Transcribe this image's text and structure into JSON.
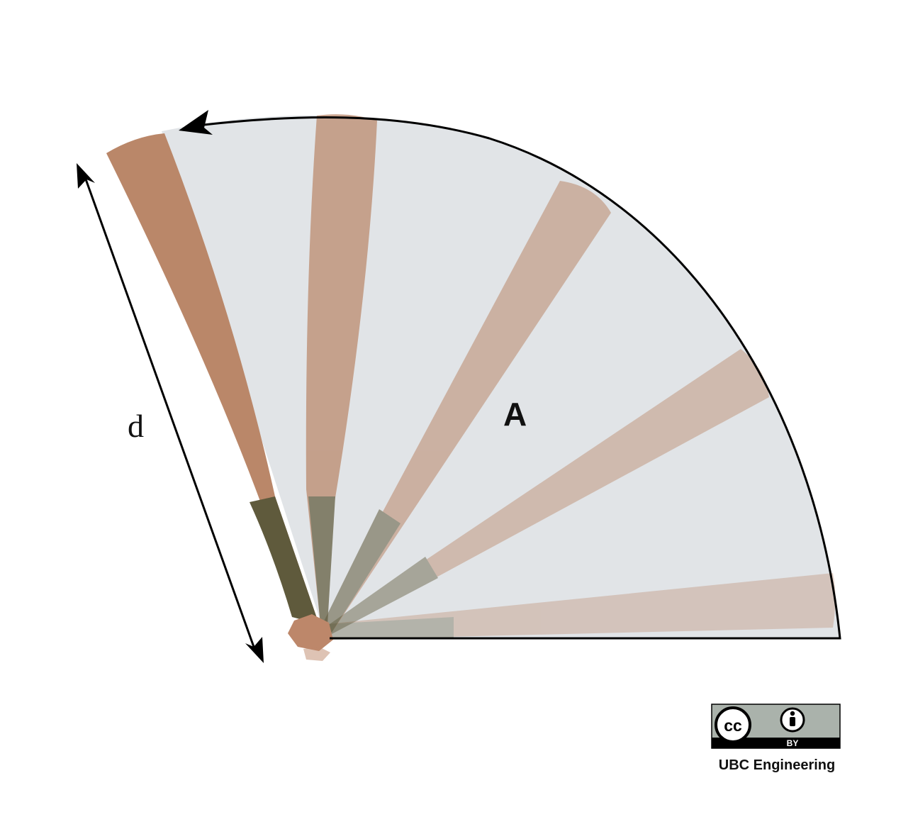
{
  "diagram": {
    "distance_label": "d",
    "area_label": "A",
    "colors": {
      "sector_fill": "#e1e4e7",
      "outline": "#000000",
      "fan_stick": "#ba8769",
      "fan_stick_base": "#5f5a3c",
      "pivot": "#bd876a"
    }
  },
  "license": {
    "badge_left": "cc",
    "badge_bottom": "BY",
    "credit": "UBC Engineering"
  }
}
